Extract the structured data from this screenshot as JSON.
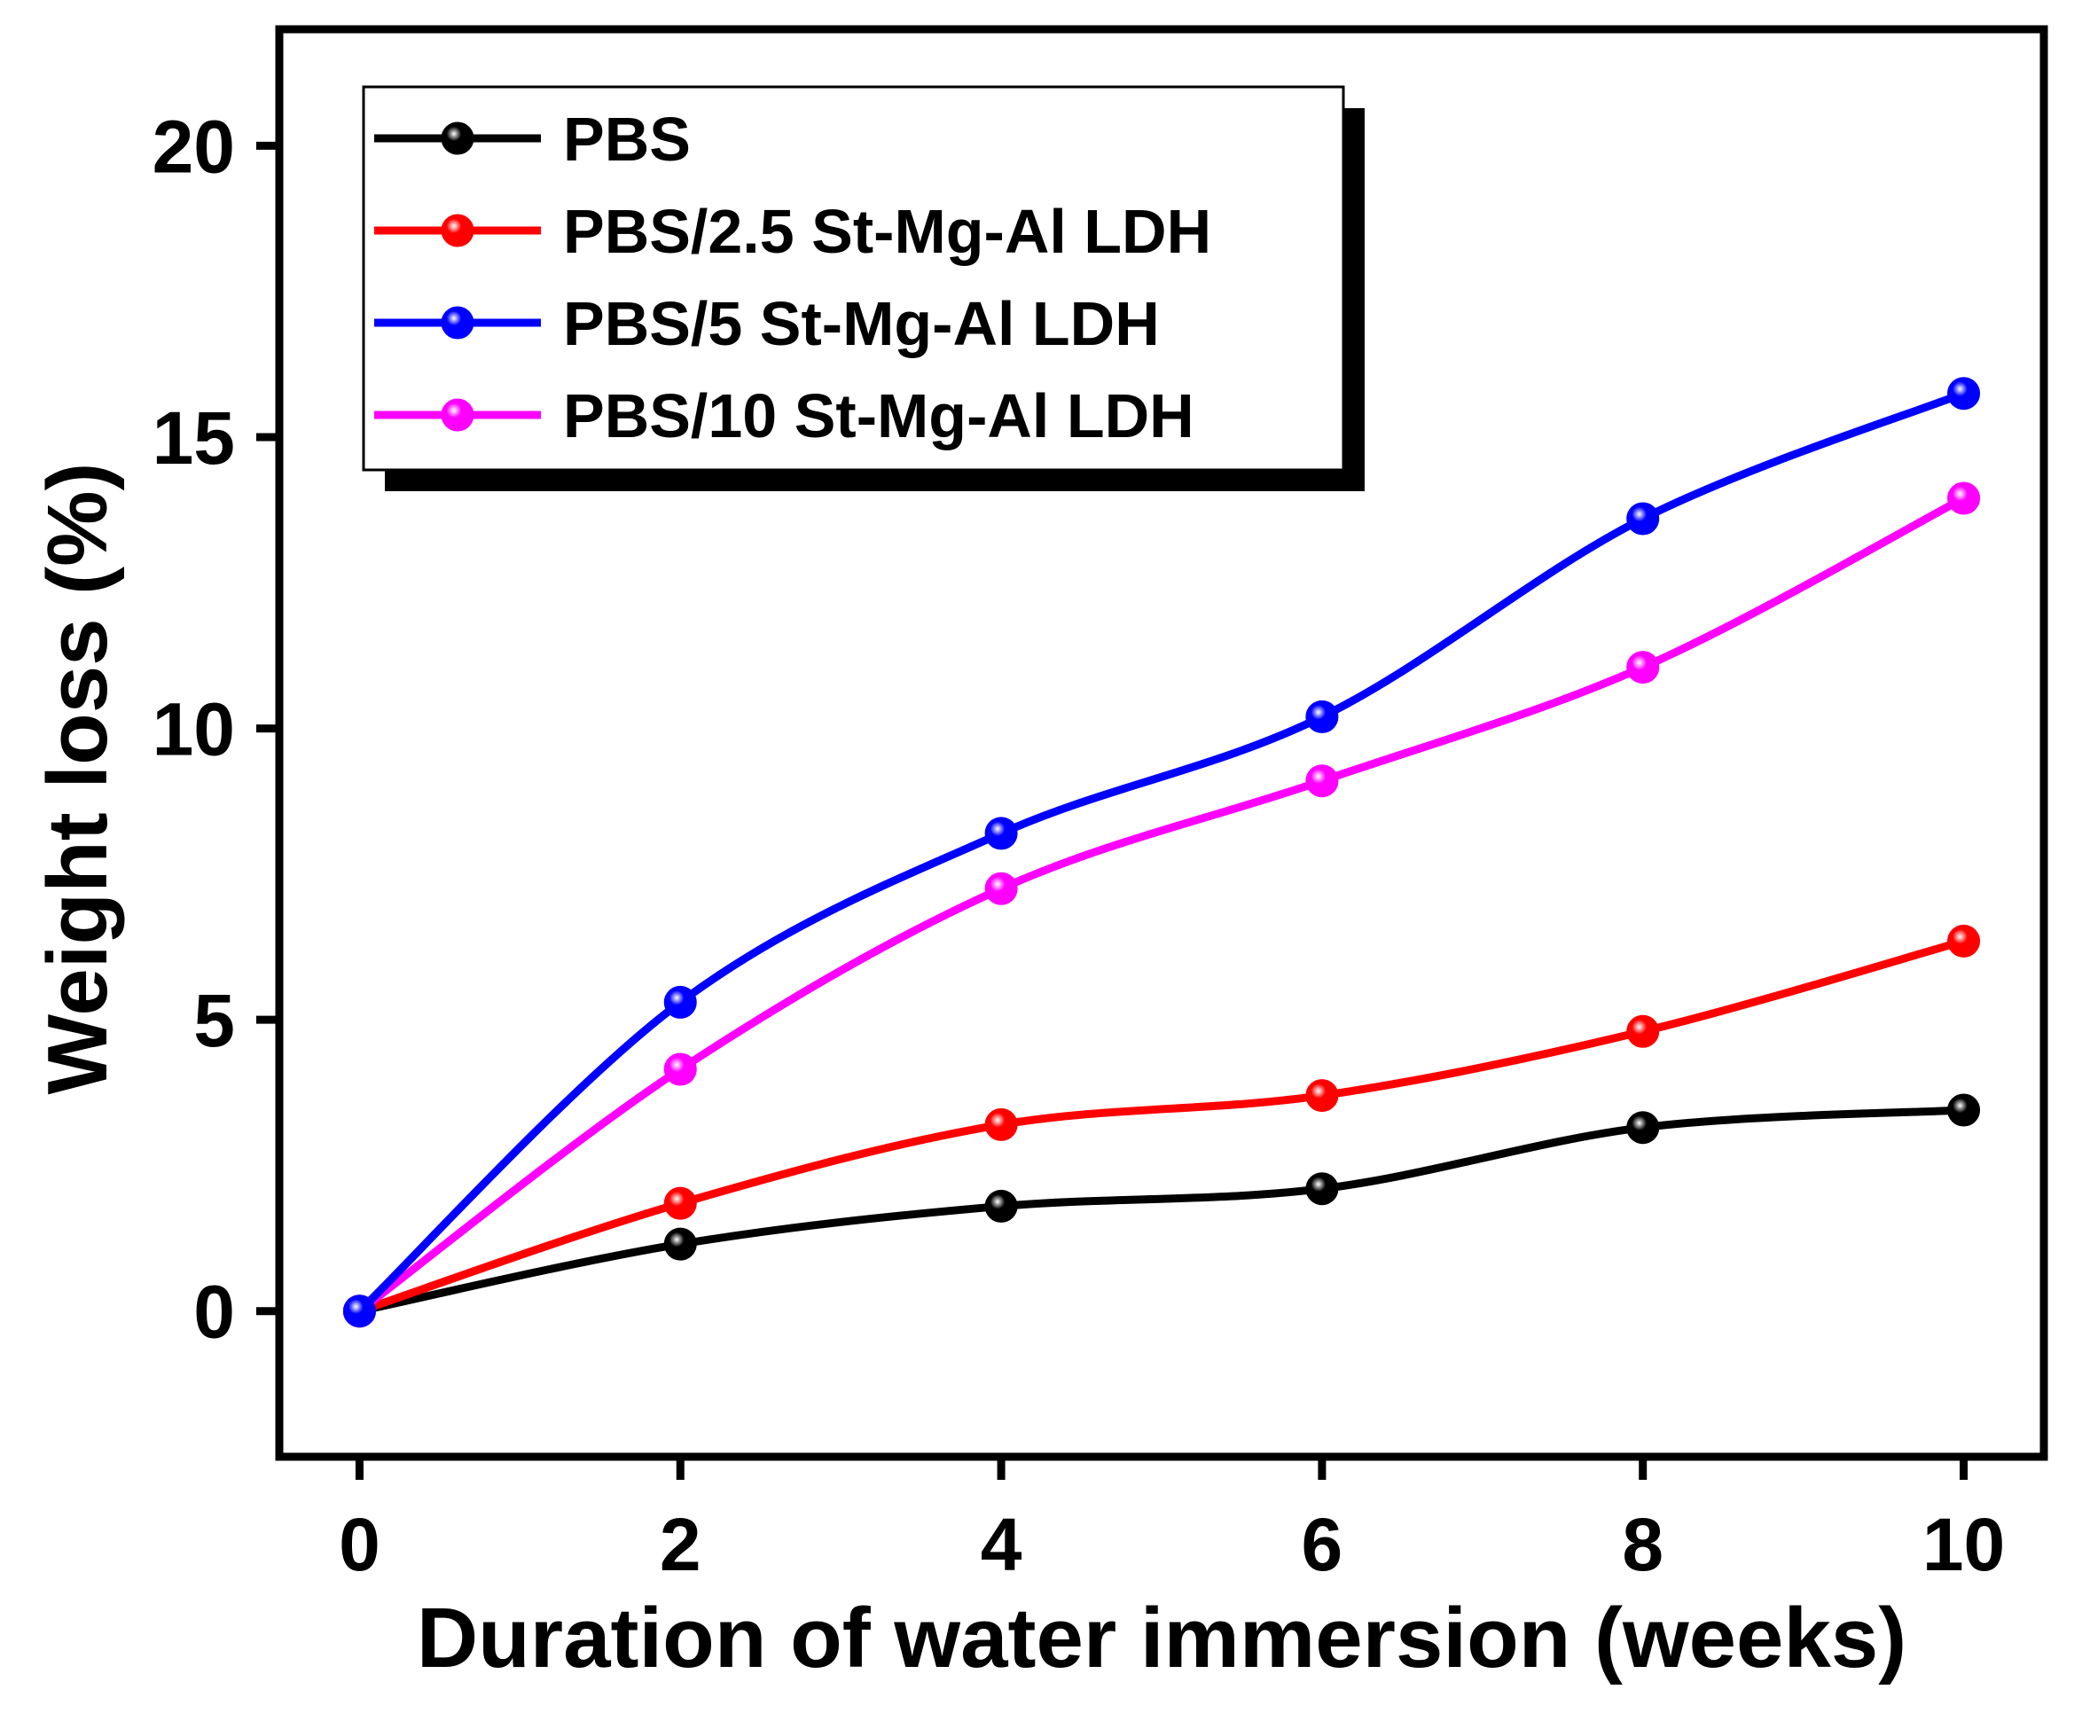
{
  "chart_data": {
    "type": "line",
    "title": "",
    "xlabel": "Duration of water immersion (weeks)",
    "ylabel": "Weight loss (%)",
    "xlim": [
      -0.5,
      10.5
    ],
    "ylim": [
      -2.5,
      22
    ],
    "x_ticks": [
      0,
      2,
      4,
      6,
      8,
      10
    ],
    "x_tick_labels": [
      "0",
      "2",
      "4",
      "6",
      "8",
      "10"
    ],
    "y_ticks": [
      0,
      5,
      10,
      15,
      20
    ],
    "y_tick_labels": [
      "0",
      "5",
      "10",
      "15",
      "20"
    ],
    "x": [
      0,
      2,
      4,
      6,
      8,
      10
    ],
    "series": [
      {
        "name": "PBS",
        "color": "#000000",
        "values": [
          0,
          1.15,
          1.8,
          2.1,
          3.15,
          3.45
        ]
      },
      {
        "name": "PBS/2.5 St-Mg-Al LDH",
        "color": "#ff0000",
        "values": [
          0,
          1.85,
          3.2,
          3.7,
          4.8,
          6.35
        ]
      },
      {
        "name": "PBS/5 St-Mg-Al LDH",
        "color": "#0000ff",
        "values": [
          0,
          5.3,
          8.2,
          10.2,
          13.6,
          15.75
        ]
      },
      {
        "name": "PBS/10 St-Mg-Al LDH",
        "color": "#ff00ff",
        "values": [
          0,
          4.15,
          7.25,
          9.1,
          11.05,
          13.95
        ]
      }
    ],
    "legend_position": "top-left",
    "grid": false
  }
}
